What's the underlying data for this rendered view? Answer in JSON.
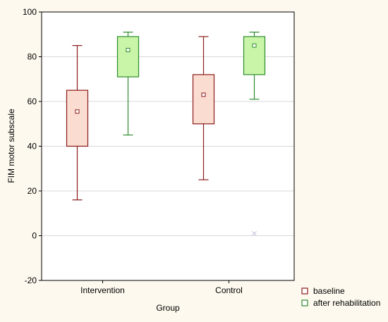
{
  "chart_data": {
    "type": "boxplot",
    "xlabel": "Group",
    "ylabel": "FIM motor subscale",
    "ylim": [
      -20,
      100
    ],
    "yticks": [
      -20,
      0,
      20,
      40,
      60,
      80,
      100
    ],
    "grid": "horizontal",
    "legend_position": "bottom-right",
    "categories": [
      "Intervention",
      "Control"
    ],
    "series": [
      {
        "name": "baseline",
        "color": "#8b1a1a",
        "fill": "#fadcd0",
        "boxes": [
          {
            "category": "Intervention",
            "whisker_low": 16,
            "q1": 40,
            "median": 55.5,
            "q3": 65,
            "whisker_high": 85
          },
          {
            "category": "Control",
            "whisker_low": 25,
            "q1": 50,
            "median": 63,
            "q3": 72,
            "whisker_high": 89
          }
        ]
      },
      {
        "name": "after rehabilitation",
        "color": "#2e8b2e",
        "fill": "#c8f5a8",
        "boxes": [
          {
            "category": "Intervention",
            "whisker_low": 45,
            "q1": 71,
            "median": 83,
            "q3": 89,
            "whisker_high": 91
          },
          {
            "category": "Control",
            "whisker_low": 61,
            "q1": 72,
            "median": 85,
            "q3": 89,
            "whisker_high": 91,
            "outliers": [
              1
            ]
          }
        ]
      }
    ]
  }
}
